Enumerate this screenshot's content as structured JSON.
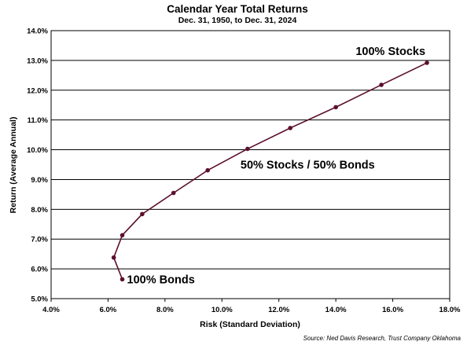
{
  "chart_data": {
    "type": "line",
    "title": "Calendar Year Total Returns",
    "subtitle": "Dec. 31, 1950, to Dec. 31, 2024",
    "xlabel": "Risk (Standard Deviation)",
    "ylabel": "Return (Average Annual)",
    "xlim": [
      4.0,
      18.0
    ],
    "ylim": [
      5.0,
      14.0
    ],
    "xticks": [
      4,
      6,
      8,
      10,
      12,
      14,
      16,
      18
    ],
    "yticks": [
      5,
      6,
      7,
      8,
      9,
      10,
      11,
      12,
      13,
      14
    ],
    "tick_format": "percent_1dp",
    "grid": "horizontal",
    "line_color": "#5c0f2e",
    "series": [
      {
        "points": [
          {
            "x": 6.5,
            "y": 5.65
          },
          {
            "x": 6.2,
            "y": 6.38
          },
          {
            "x": 6.5,
            "y": 7.13
          },
          {
            "x": 7.2,
            "y": 7.84
          },
          {
            "x": 8.3,
            "y": 8.55
          },
          {
            "x": 9.5,
            "y": 9.31
          },
          {
            "x": 10.9,
            "y": 10.03
          },
          {
            "x": 12.4,
            "y": 10.73
          },
          {
            "x": 14.0,
            "y": 11.43
          },
          {
            "x": 15.6,
            "y": 12.18
          },
          {
            "x": 17.2,
            "y": 12.92
          }
        ]
      }
    ],
    "annotations": [
      {
        "text": "100% Stocks",
        "x": 17.2,
        "y": 12.92
      },
      {
        "text": "50% Stocks / 50% Bonds",
        "x": 10.9,
        "y": 10.03
      },
      {
        "text": "100% Bonds",
        "x": 6.5,
        "y": 5.65
      }
    ]
  },
  "source": "Source: Ned Davis Research, Trust Company Oklahoma"
}
